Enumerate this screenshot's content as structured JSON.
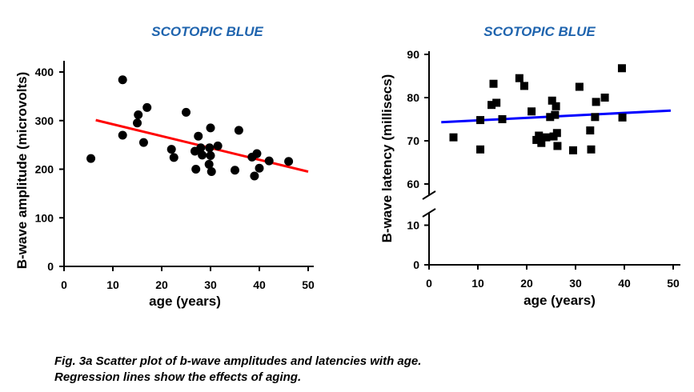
{
  "caption": {
    "line1": "Fig. 3a Scatter plot of b-wave amplitudes and latencies with age.",
    "line2": "Regression lines  show the effects of aging."
  },
  "chart_data": [
    {
      "type": "scatter",
      "title": "SCOTOPIC BLUE",
      "xlabel": "age (years)",
      "ylabel": "B-wave amplitude (microvolts)",
      "xlim": [
        0,
        50
      ],
      "ylim": [
        0,
        400
      ],
      "xticks": [
        "0",
        "10",
        "20",
        "30",
        "40",
        "50"
      ],
      "yticks": [
        "0",
        "100",
        "200",
        "300",
        "400"
      ],
      "marker": "circle",
      "marker_color": "#000000",
      "x": [
        5.5,
        12,
        12,
        15,
        15.2,
        16.3,
        17,
        22,
        22.5,
        25,
        26.8,
        27,
        27.5,
        28,
        28.3,
        29.7,
        29.8,
        30,
        30,
        30.2,
        31.5,
        35,
        35.8,
        38.5,
        39,
        39.5,
        40,
        42,
        46
      ],
      "y": [
        222,
        384,
        270,
        295,
        312,
        255,
        327,
        241,
        224,
        317,
        237,
        200,
        268,
        244,
        229,
        210,
        244,
        285,
        228,
        195,
        248,
        198,
        280,
        225,
        186,
        232,
        202,
        217,
        216
      ],
      "regression": {
        "color": "#ff0000",
        "x": [
          6.5,
          50
        ],
        "y": [
          301,
          195
        ]
      }
    },
    {
      "type": "scatter",
      "title": "SCOTOPIC BLUE",
      "xlabel": "age (years)",
      "ylabel": "B-wave latency (millisecs)",
      "xlim": [
        0,
        50
      ],
      "ylim_upper": [
        55,
        90
      ],
      "ylim_lower": [
        0,
        15
      ],
      "axis_break": true,
      "xticks": [
        "0",
        "10",
        "20",
        "30",
        "40",
        "50"
      ],
      "yticks_upper": [
        "60",
        "70",
        "80",
        "90"
      ],
      "yticks_lower": [
        "0",
        "10"
      ],
      "marker": "square",
      "marker_color": "#000000",
      "x": [
        5,
        10.5,
        10.5,
        12.8,
        13.2,
        13.8,
        15,
        18.5,
        19.5,
        21,
        22,
        22.5,
        23,
        24,
        24.8,
        25.2,
        25.5,
        25.8,
        26,
        26.2,
        26.3,
        29.5,
        30.8,
        33,
        33.2,
        34,
        34.2,
        36,
        39.5,
        39.6
      ],
      "y": [
        70.8,
        74.8,
        68,
        78.3,
        83.2,
        78.8,
        75,
        84.5,
        82.7,
        76.8,
        70.2,
        71.2,
        69.5,
        70.8,
        75.5,
        79.3,
        71,
        76,
        78,
        71.8,
        68.8,
        67.8,
        82.5,
        72.4,
        68,
        75.5,
        79,
        80,
        86.8,
        75.4
      ],
      "regression": {
        "color": "#0000ff",
        "x": [
          2.5,
          49.5
        ],
        "y": [
          74.3,
          77
        ]
      }
    }
  ]
}
